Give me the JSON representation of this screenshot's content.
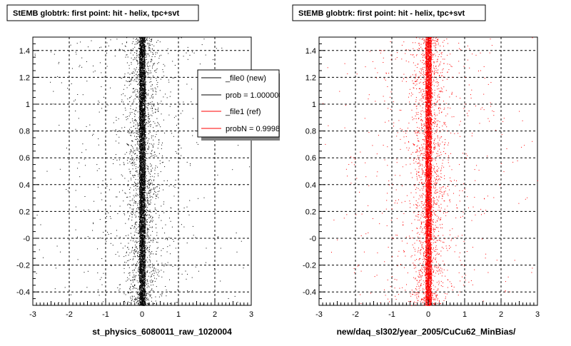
{
  "canvas": {
    "background": "#ffffff"
  },
  "footer_note": "",
  "chart_data": [
    {
      "type": "scatter",
      "title": "StEMB globtrk: first point: hit - helix, tpc+svt",
      "xlabel": "st_physics_6080011_raw_1020004",
      "ylabel": "",
      "xlim": [
        -3,
        3
      ],
      "ylim": [
        -0.5,
        1.5
      ],
      "xticks": [
        "-3",
        "-2",
        "-1",
        "0",
        "1",
        "2",
        "3"
      ],
      "yticks": [
        "-0.4",
        "-0.2",
        "-0",
        "0.2",
        "0.4",
        "0.6",
        "0.8",
        "1",
        "1.2",
        "1.4"
      ],
      "grid": true,
      "point_color": "#000000",
      "distribution": {
        "core_center_x": 0.0,
        "core_halfwidth_x": 0.08,
        "halo_halfwidth_x": 2.2
      },
      "legend": {
        "placement": "top-right",
        "entries": [
          {
            "label": "_file0 (new)",
            "color": "#000000"
          },
          {
            "label": "prob = 1.000000",
            "color": "#000000"
          },
          {
            "label": "_file1 (ref)",
            "color": "#ff0000"
          },
          {
            "label": "probN = 0.999838",
            "color": "#ff0000"
          }
        ]
      }
    },
    {
      "type": "scatter",
      "title": "StEMB globtrk: first point: hit - helix, tpc+svt",
      "xlabel": "new/daq_sl302/year_2005/CuCu62_MinBias/",
      "ylabel": "",
      "xlim": [
        -3,
        3
      ],
      "ylim": [
        -0.5,
        1.5
      ],
      "xticks": [
        "-3",
        "-2",
        "-1",
        "0",
        "1",
        "2",
        "3"
      ],
      "yticks": [
        "-0.4",
        "-0.2",
        "-0",
        "0.2",
        "0.4",
        "0.6",
        "0.8",
        "1",
        "1.2",
        "1.4"
      ],
      "grid": true,
      "point_color": "#ff0000",
      "distribution": {
        "core_center_x": 0.0,
        "core_halfwidth_x": 0.08,
        "halo_halfwidth_x": 2.2
      }
    }
  ]
}
